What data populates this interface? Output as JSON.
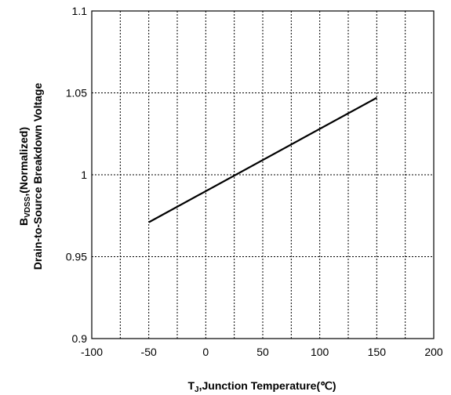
{
  "chart_data": {
    "type": "line",
    "title": "",
    "xlabel": {
      "main": "T",
      "sub": "J",
      "rest": ",Junction Temperature(℃)"
    },
    "ylabel": {
      "line1_main": "B",
      "line1_sub": "VDSS",
      "line1_rest": ",(Normalized)",
      "line2": "Drain-to-Source Breakdown Voltage"
    },
    "xlim": [
      -100,
      200
    ],
    "ylim": [
      0.9,
      1.1
    ],
    "x_ticks": [
      -100,
      -50,
      0,
      50,
      100,
      150,
      200
    ],
    "x_tick_labels": [
      "-100",
      "-50",
      "0",
      "50",
      "100",
      "150",
      "200"
    ],
    "y_ticks": [
      0.9,
      0.95,
      1.0,
      1.05,
      1.1
    ],
    "y_tick_labels": [
      "0.9",
      "0.95",
      "1",
      "1.05",
      "1.1"
    ],
    "x_grid_minor": [
      -75,
      -25,
      25,
      75,
      125,
      175
    ],
    "grid": true,
    "grid_style": "dashed",
    "series": [
      {
        "x": [
          -50,
          150
        ],
        "y": [
          0.971,
          1.047
        ],
        "color": "#000000"
      }
    ]
  }
}
